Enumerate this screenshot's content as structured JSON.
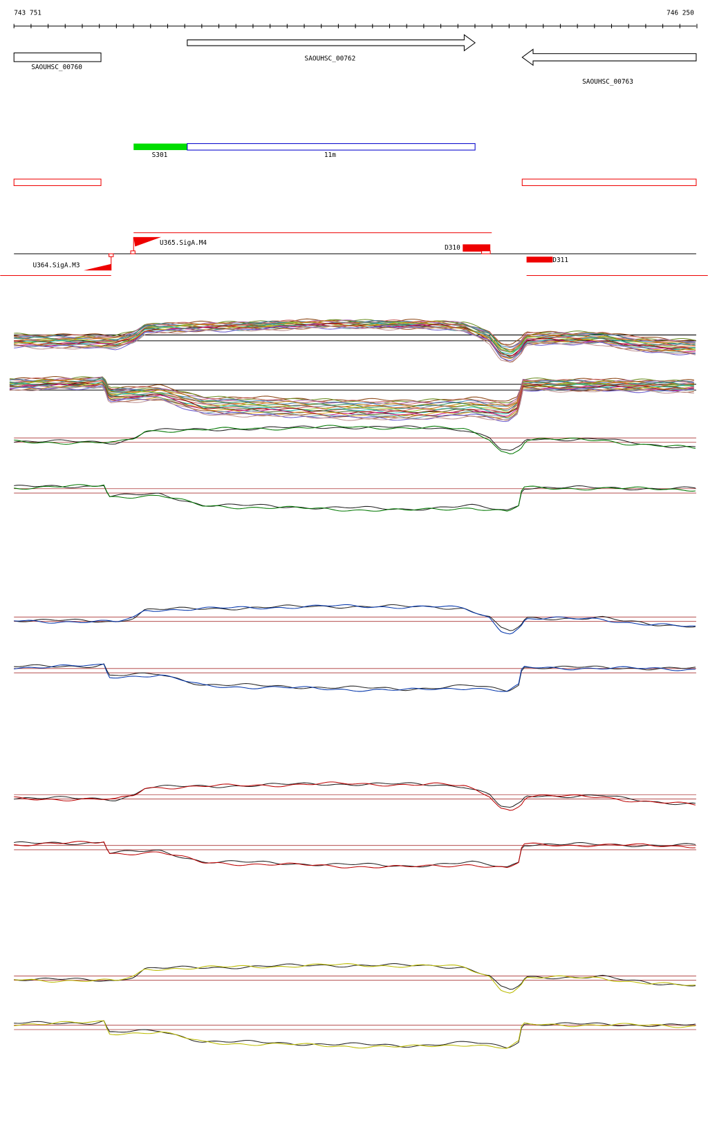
{
  "ruler": {
    "start": "743 751",
    "end": "746 250"
  },
  "genes": [
    {
      "label": "SAOUHSC_00760"
    },
    {
      "label": "SAOUHSC_00762"
    },
    {
      "label": "SAOUHSC_00763"
    }
  ],
  "segments": [
    {
      "label": "S301"
    },
    {
      "label": "11m"
    }
  ],
  "features": [
    {
      "label": "U365.SigA.M4"
    },
    {
      "label": "U364.SigA.M3"
    },
    {
      "label": "D310"
    },
    {
      "label": "D311"
    }
  ]
}
